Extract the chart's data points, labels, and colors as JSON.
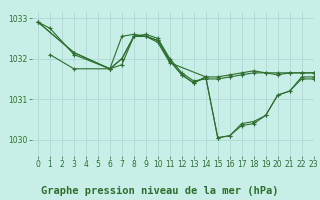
{
  "background_color": "#c8eee8",
  "grid_color": "#b0d8d4",
  "line_color": "#2d6e2d",
  "title": "Graphe pression niveau de la mer (hPa)",
  "xlim": [
    -0.5,
    23
  ],
  "ylim": [
    1029.6,
    1033.15
  ],
  "yticks": [
    1030,
    1031,
    1032,
    1033
  ],
  "xticks": [
    0,
    1,
    2,
    3,
    4,
    5,
    6,
    7,
    8,
    9,
    10,
    11,
    12,
    13,
    14,
    15,
    16,
    17,
    18,
    19,
    20,
    21,
    22,
    23
  ],
  "series": [
    {
      "x": [
        0,
        1,
        3,
        6,
        7,
        8,
        9,
        10,
        11,
        14,
        15,
        16,
        17,
        18,
        19,
        20,
        21,
        22,
        23
      ],
      "y": [
        1032.9,
        1032.75,
        1032.1,
        1031.75,
        1032.55,
        1032.6,
        1032.55,
        1032.4,
        1031.9,
        1031.55,
        1030.05,
        1030.1,
        1030.35,
        1030.4,
        1030.6,
        1031.1,
        1031.2,
        1031.55,
        1031.55
      ]
    },
    {
      "x": [
        0,
        3,
        6,
        7,
        8,
        9,
        10,
        11,
        12,
        13,
        14,
        15,
        16,
        17,
        18,
        19,
        20,
        21,
        22,
        23
      ],
      "y": [
        1032.9,
        1032.15,
        1031.75,
        1032.0,
        1032.55,
        1032.55,
        1032.45,
        1031.95,
        1031.6,
        1031.4,
        1031.55,
        1031.55,
        1031.6,
        1031.65,
        1031.7,
        1031.65,
        1031.65,
        1031.65,
        1031.65,
        1031.65
      ]
    },
    {
      "x": [
        0,
        3,
        6,
        7,
        8,
        9,
        10,
        11,
        12,
        13,
        14,
        15,
        16,
        17,
        18,
        19,
        20,
        21,
        22,
        23
      ],
      "y": [
        1032.9,
        1032.15,
        1031.75,
        1031.85,
        1032.55,
        1032.6,
        1032.5,
        1032.0,
        1031.65,
        1031.45,
        1031.5,
        1031.5,
        1031.55,
        1031.6,
        1031.65,
        1031.65,
        1031.6,
        1031.65,
        1031.65,
        1031.65
      ]
    },
    {
      "x": [
        1,
        3,
        6,
        7,
        8,
        9,
        10,
        11,
        12,
        13,
        14,
        15,
        16,
        17,
        18,
        19,
        20,
        21,
        22,
        23
      ],
      "y": [
        1032.1,
        1031.75,
        1031.75,
        1032.0,
        1032.55,
        1032.55,
        1032.45,
        1031.95,
        1031.6,
        1031.4,
        1031.55,
        1030.05,
        1030.1,
        1030.4,
        1030.45,
        1030.6,
        1031.1,
        1031.2,
        1031.5,
        1031.5
      ]
    }
  ],
  "title_fontsize": 7.5,
  "tick_fontsize": 5.5
}
